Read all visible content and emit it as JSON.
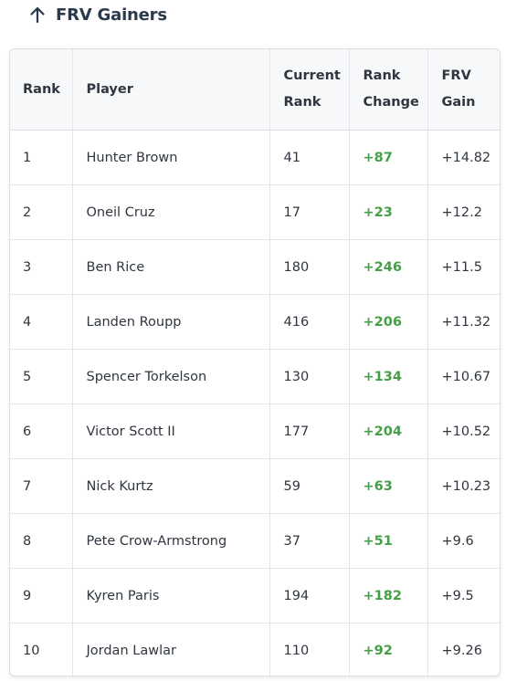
{
  "header": {
    "title": "FRV Gainers",
    "icon": "arrow-up-icon"
  },
  "table": {
    "columns": [
      {
        "line1": "Rank",
        "line2": ""
      },
      {
        "line1": "Player",
        "line2": ""
      },
      {
        "line1": "Current",
        "line2": "Rank"
      },
      {
        "line1": "Rank",
        "line2": "Change"
      },
      {
        "line1": "FRV",
        "line2": "Gain"
      }
    ],
    "rows": [
      {
        "rank": "1",
        "player": "Hunter Brown",
        "current_rank": "41",
        "rank_change": "+87",
        "frv_gain": "+14.82"
      },
      {
        "rank": "2",
        "player": "Oneil Cruz",
        "current_rank": "17",
        "rank_change": "+23",
        "frv_gain": "+12.2"
      },
      {
        "rank": "3",
        "player": "Ben Rice",
        "current_rank": "180",
        "rank_change": "+246",
        "frv_gain": "+11.5"
      },
      {
        "rank": "4",
        "player": "Landen Roupp",
        "current_rank": "416",
        "rank_change": "+206",
        "frv_gain": "+11.32"
      },
      {
        "rank": "5",
        "player": "Spencer Torkelson",
        "current_rank": "130",
        "rank_change": "+134",
        "frv_gain": "+10.67"
      },
      {
        "rank": "6",
        "player": "Victor Scott II",
        "current_rank": "177",
        "rank_change": "+204",
        "frv_gain": "+10.52"
      },
      {
        "rank": "7",
        "player": "Nick Kurtz",
        "current_rank": "59",
        "rank_change": "+63",
        "frv_gain": "+10.23"
      },
      {
        "rank": "8",
        "player": "Pete Crow-Armstrong",
        "current_rank": "37",
        "rank_change": "+51",
        "frv_gain": "+9.6"
      },
      {
        "rank": "9",
        "player": "Kyren Paris",
        "current_rank": "194",
        "rank_change": "+182",
        "frv_gain": "+9.5"
      },
      {
        "rank": "10",
        "player": "Jordan Lawlar",
        "current_rank": "110",
        "rank_change": "+92",
        "frv_gain": "+9.26"
      }
    ]
  },
  "colors": {
    "positive_change": "#43a047",
    "header_bg": "#f7f8fa",
    "title": "#2a3a4c"
  }
}
